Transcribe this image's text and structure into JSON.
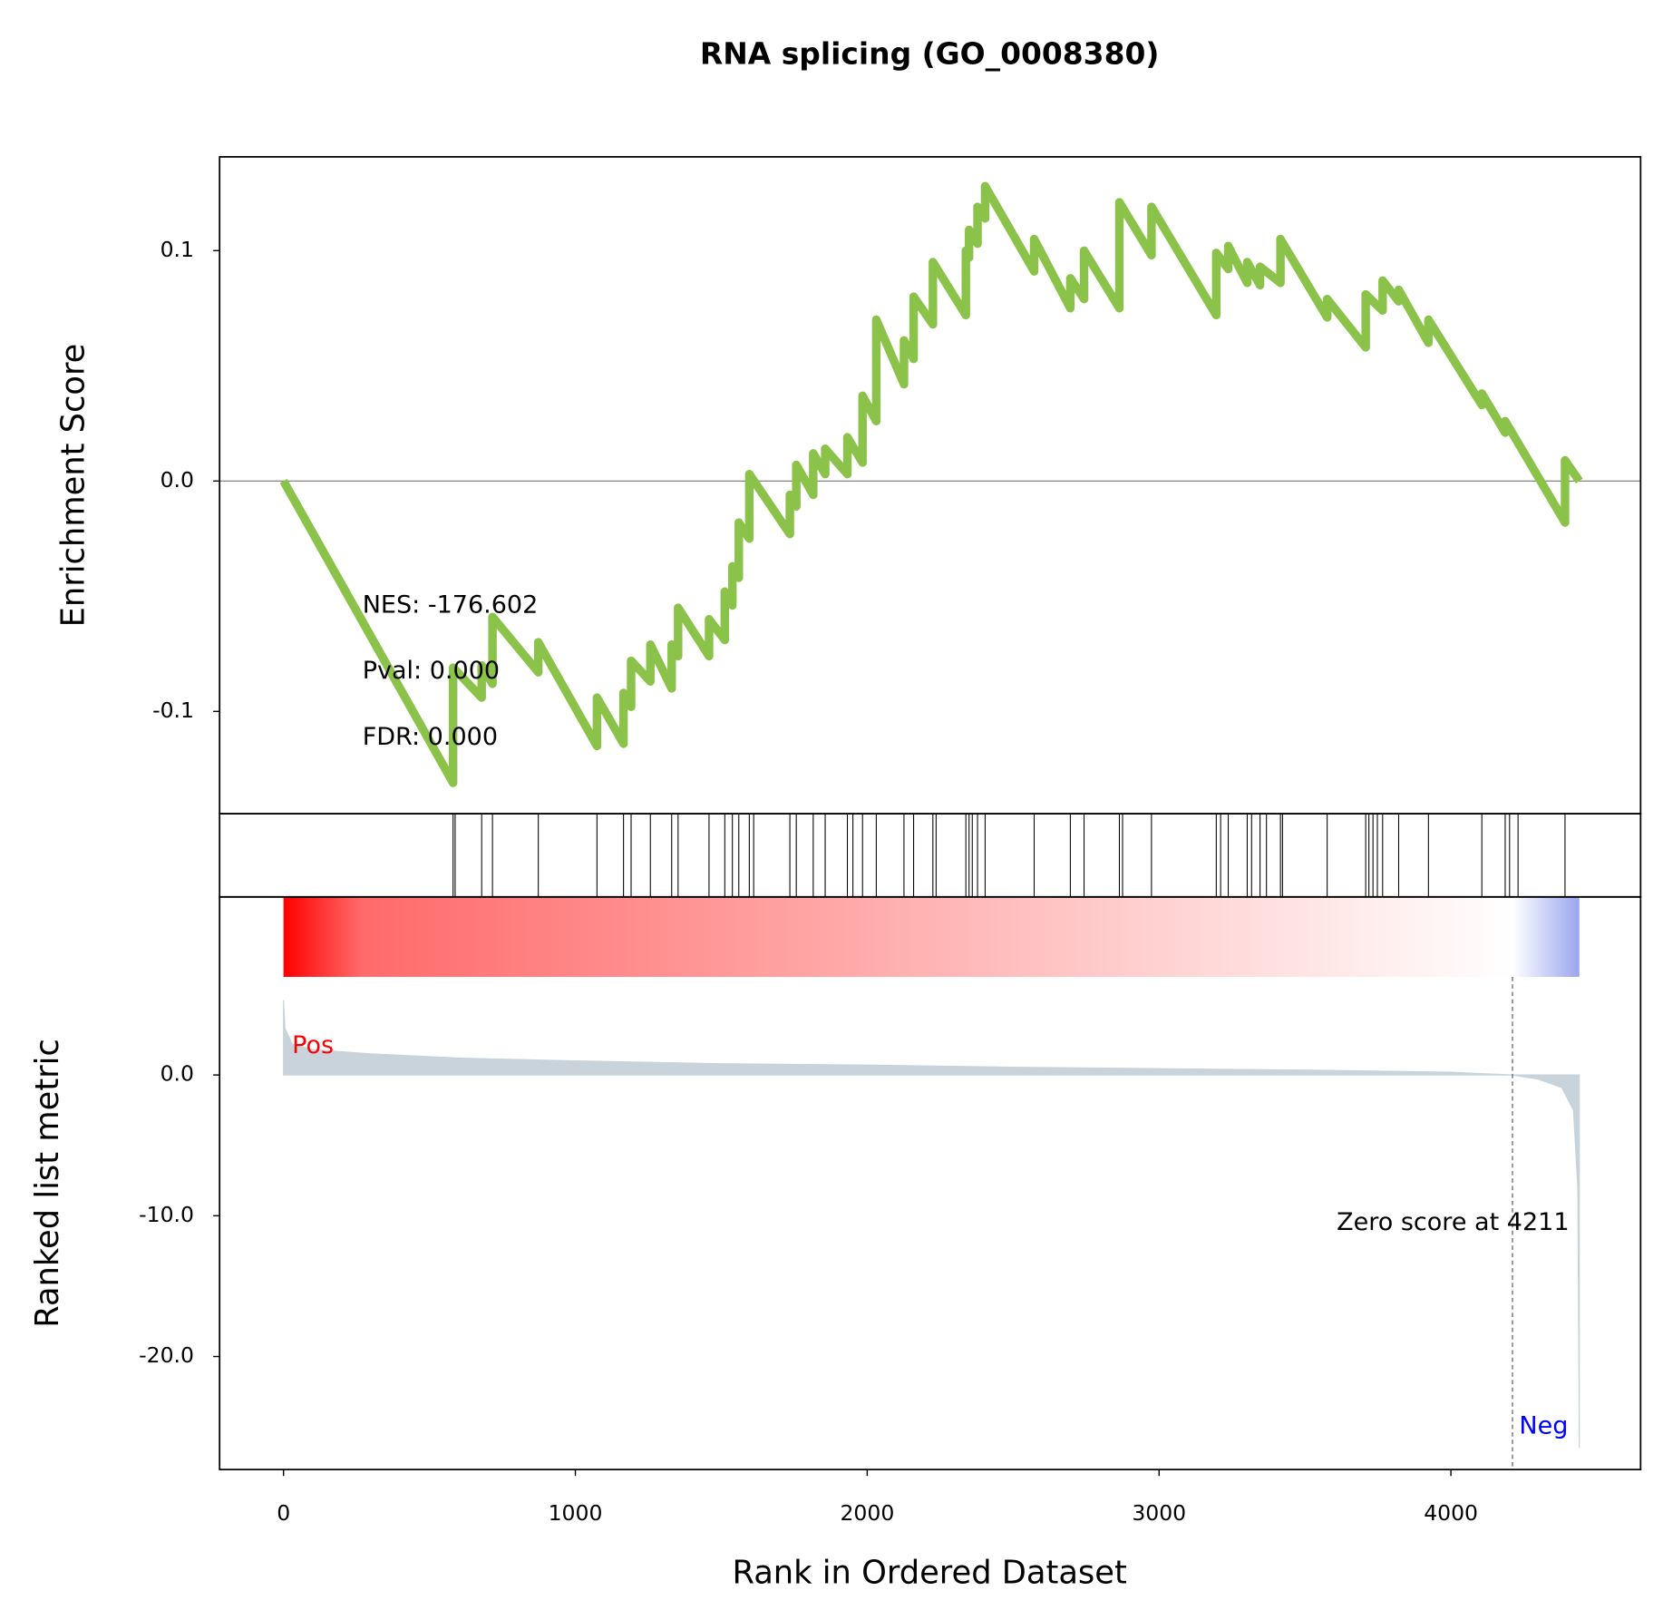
{
  "title": "RNA splicing (GO_0008380)",
  "chart_data": [
    {
      "type": "line",
      "ylabel": "Enrichment Score",
      "color": "#8bc34a",
      "xlim": [
        -219,
        4650
      ],
      "ylim": [
        -0.1444,
        0.1407
      ],
      "yticks": [
        0.1,
        {
          "value": 0,
          "label": "0.0"
        },
        -0.1
      ],
      "zero_line": 0,
      "annotations": [
        "NES: -176.602",
        "Pval: 0.000",
        "FDR: 0.000"
      ],
      "x": [
        0,
        581,
        581,
        679,
        679,
        716,
        716,
        873,
        873,
        1074,
        1074,
        1165,
        1165,
        1191,
        1191,
        1257,
        1257,
        1330,
        1330,
        1352,
        1352,
        1458,
        1458,
        1512,
        1512,
        1538,
        1538,
        1560,
        1560,
        1596,
        1596,
        1735,
        1735,
        1757,
        1757,
        1815,
        1815,
        1856,
        1856,
        1932,
        1932,
        1984,
        1984,
        2031,
        2031,
        2126,
        2126,
        2159,
        2159,
        2225,
        2225,
        2338,
        2338,
        2349,
        2349,
        2378,
        2378,
        2404,
        2404,
        2572,
        2572,
        2696,
        2696,
        2743,
        2743,
        2864,
        2864,
        2974,
        2974,
        3196,
        3196,
        3237,
        3237,
        3302,
        3302,
        3346,
        3346,
        3416,
        3416,
        3576,
        3576,
        3708,
        3708,
        3766,
        3766,
        3821,
        3821,
        3923,
        3923,
        4106,
        4106,
        4186,
        4186,
        4391,
        4391,
        4440
      ],
      "values": [
        0,
        -0.131,
        -0.081,
        -0.094,
        -0.08,
        -0.088,
        -0.059,
        -0.083,
        -0.07,
        -0.115,
        -0.094,
        -0.114,
        -0.092,
        -0.098,
        -0.078,
        -0.087,
        -0.071,
        -0.09,
        -0.071,
        -0.076,
        -0.055,
        -0.076,
        -0.06,
        -0.069,
        -0.048,
        -0.054,
        -0.037,
        -0.042,
        -0.018,
        -0.025,
        0.003,
        -0.023,
        -0.006,
        -0.011,
        0.007,
        -0.006,
        0.012,
        0.003,
        0.014,
        0.003,
        0.019,
        0.008,
        0.037,
        0.026,
        0.07,
        0.042,
        0.061,
        0.053,
        0.08,
        0.068,
        0.095,
        0.072,
        0.1,
        0.097,
        0.109,
        0.103,
        0.119,
        0.114,
        0.128,
        0.091,
        0.105,
        0.075,
        0.088,
        0.079,
        0.1,
        0.075,
        0.121,
        0.098,
        0.119,
        0.072,
        0.099,
        0.092,
        0.102,
        0.086,
        0.095,
        0.085,
        0.093,
        0.086,
        0.105,
        0.071,
        0.079,
        0.058,
        0.081,
        0.074,
        0.087,
        0.078,
        0.083,
        0.06,
        0.07,
        0.033,
        0.038,
        0.021,
        0.026,
        -0.018,
        0.009,
        0
      ]
    },
    {
      "type": "hits",
      "xlim": [
        -219,
        4650
      ],
      "x": [
        581,
        588,
        679,
        716,
        873,
        1074,
        1165,
        1191,
        1257,
        1330,
        1352,
        1458,
        1512,
        1538,
        1560,
        1596,
        1611,
        1735,
        1757,
        1815,
        1856,
        1932,
        1951,
        1984,
        2031,
        2126,
        2159,
        2225,
        2236,
        2338,
        2349,
        2360,
        2378,
        2404,
        2572,
        2696,
        2743,
        2864,
        2875,
        2974,
        3196,
        3211,
        3237,
        3302,
        3317,
        3346,
        3368,
        3416,
        3423,
        3576,
        3708,
        3719,
        3733,
        3748,
        3766,
        3821,
        3923,
        4106,
        4186,
        4201,
        4230,
        4391
      ]
    },
    {
      "type": "area",
      "ylabel": "Ranked list metric",
      "xlabel": "Rank in Ordered Dataset",
      "color": "#c9d3db",
      "xlim": [
        -219,
        4650
      ],
      "ylim": [
        -28.03,
        12.65
      ],
      "yticks": [
        {
          "value": 0,
          "label": "0.0"
        },
        {
          "value": -10,
          "label": "-10.0"
        },
        {
          "value": -20,
          "label": "-20.0"
        }
      ],
      "xticks": [
        0,
        1000,
        2000,
        3000,
        4000
      ],
      "pos_label": "Pos",
      "neg_label": "Neg",
      "zero_score_rank": 4211,
      "zero_score_label": "Zero score at 4211",
      "x": [
        0,
        5,
        30,
        100,
        300,
        600,
        1000,
        1500,
        2000,
        2500,
        3000,
        3500,
        4000,
        4211,
        4300,
        4380,
        4420,
        4435,
        4440
      ],
      "values": [
        5.3,
        3.3,
        2.2,
        1.8,
        1.5,
        1.2,
        1.0,
        0.8,
        0.7,
        0.55,
        0.45,
        0.35,
        0.2,
        0,
        -0.3,
        -0.9,
        -2.5,
        -8,
        -26.5
      ]
    }
  ]
}
